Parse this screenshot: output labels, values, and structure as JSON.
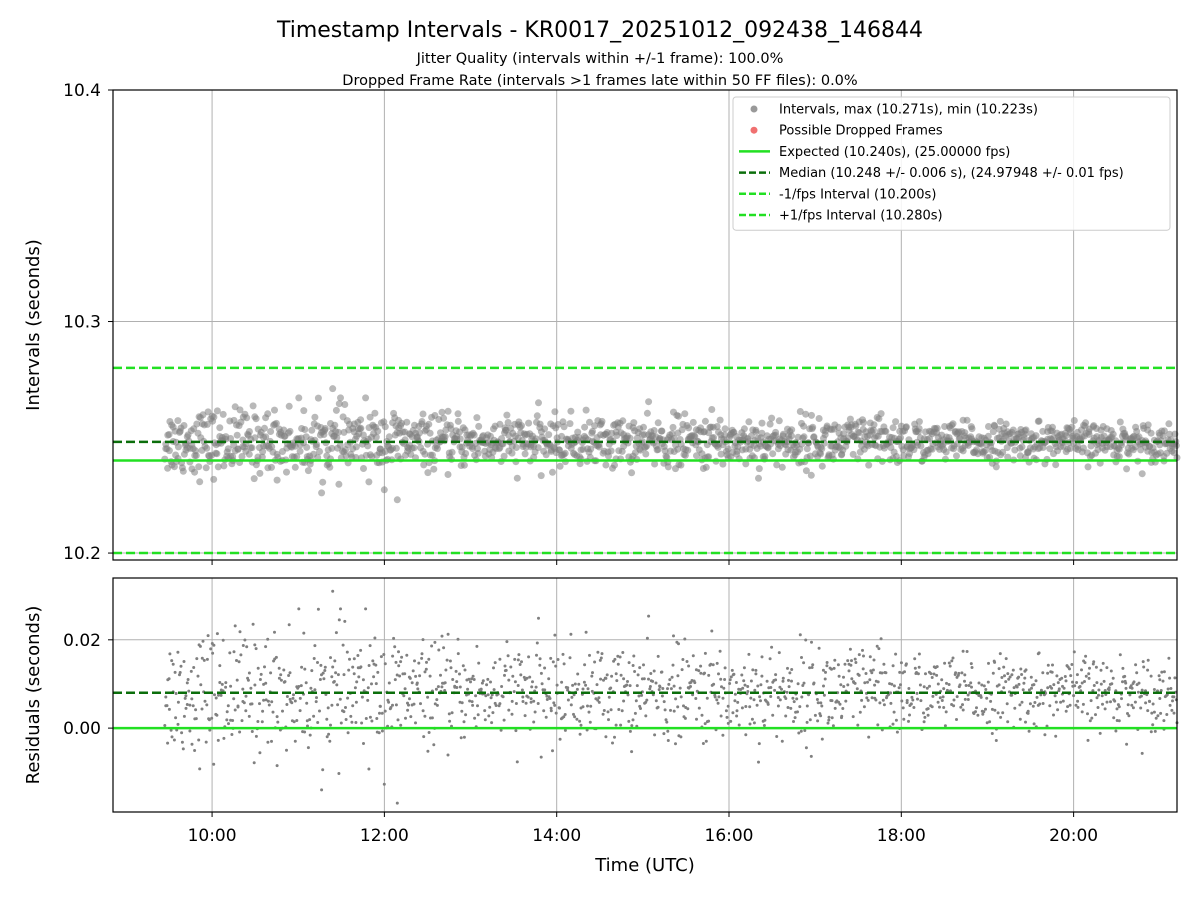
{
  "chart_data": {
    "type": "scatter",
    "title": "Timestamp Intervals - KR0017_20251012_092438_146844",
    "subtitle_lines": [
      "Jitter Quality (intervals within +/-1 frame): 100.0%",
      "Dropped Frame Rate (intervals >1 frames late within 50 FF files): 0.0%"
    ],
    "x_range_hours": [
      8.85,
      21.2
    ],
    "x_ticks": [
      {
        "value": 10,
        "label": "10:00"
      },
      {
        "value": 12,
        "label": "12:00"
      },
      {
        "value": 14,
        "label": "14:00"
      },
      {
        "value": 16,
        "label": "16:00"
      },
      {
        "value": 18,
        "label": "18:00"
      },
      {
        "value": 20,
        "label": "20:00"
      }
    ],
    "xlabel": "Time (UTC)",
    "data_x_range_hours": [
      9.45,
      21.2
    ],
    "interval_spread_s": 0.0055,
    "residual_mean_s": 0.0068,
    "top_panel": {
      "ylabel": "Intervals (seconds)",
      "ylim": [
        10.197,
        10.4
      ],
      "y_ticks": [
        {
          "value": 10.2,
          "label": "10.2"
        },
        {
          "value": 10.3,
          "label": "10.3"
        },
        {
          "value": 10.4,
          "label": "10.4"
        }
      ],
      "max_interval_s": 10.271,
      "min_interval_s": 10.223,
      "max_interval_time_h": 11.4,
      "min_interval_time_h": 12.15,
      "lines": [
        {
          "name": "expected",
          "value": 10.24,
          "color": "#22e022",
          "style": "solid"
        },
        {
          "name": "median",
          "value": 10.248,
          "color": "#0b6e0b",
          "style": "dashed"
        },
        {
          "name": "minus-fps",
          "value": 10.2,
          "color": "#22e022",
          "style": "dashed"
        },
        {
          "name": "plus-fps",
          "value": 10.28,
          "color": "#22e022",
          "style": "dashed"
        }
      ]
    },
    "bottom_panel": {
      "ylabel": "Residuals (seconds)",
      "ylim": [
        -0.019,
        0.034
      ],
      "y_ticks": [
        {
          "value": 0.0,
          "label": "0.00"
        },
        {
          "value": 0.02,
          "label": "0.02"
        }
      ],
      "lines": [
        {
          "name": "zero",
          "value": 0.0,
          "color": "#22e022",
          "style": "solid"
        },
        {
          "name": "median-residual",
          "value": 0.008,
          "color": "#0b6e0b",
          "style": "dashed"
        }
      ]
    },
    "legend": {
      "position": "upper right",
      "entries": [
        {
          "label": "Intervals, max (10.271s), min (10.223s)",
          "marker": "dot",
          "color": "#999999"
        },
        {
          "label": "Possible Dropped Frames",
          "marker": "dot",
          "color": "#f07070"
        },
        {
          "label": "Expected (10.240s), (25.00000 fps)",
          "marker": "line",
          "color": "#22e022",
          "style": "solid"
        },
        {
          "label": "Median (10.248 +/- 0.006 s), (24.97948 +/- 0.01 fps)",
          "marker": "line",
          "color": "#0b6e0b",
          "style": "dashed"
        },
        {
          "label": "-1/fps Interval (10.200s)",
          "marker": "line",
          "color": "#22e022",
          "style": "dashed"
        },
        {
          "label": "+1/fps Interval (10.280s)",
          "marker": "line",
          "color": "#22e022",
          "style": "dashed"
        }
      ]
    },
    "colors": {
      "points": "#808080",
      "expected": "#22e022",
      "median": "#0b6e0b",
      "grid": "#b0b0b0",
      "axes": "#000000"
    }
  }
}
